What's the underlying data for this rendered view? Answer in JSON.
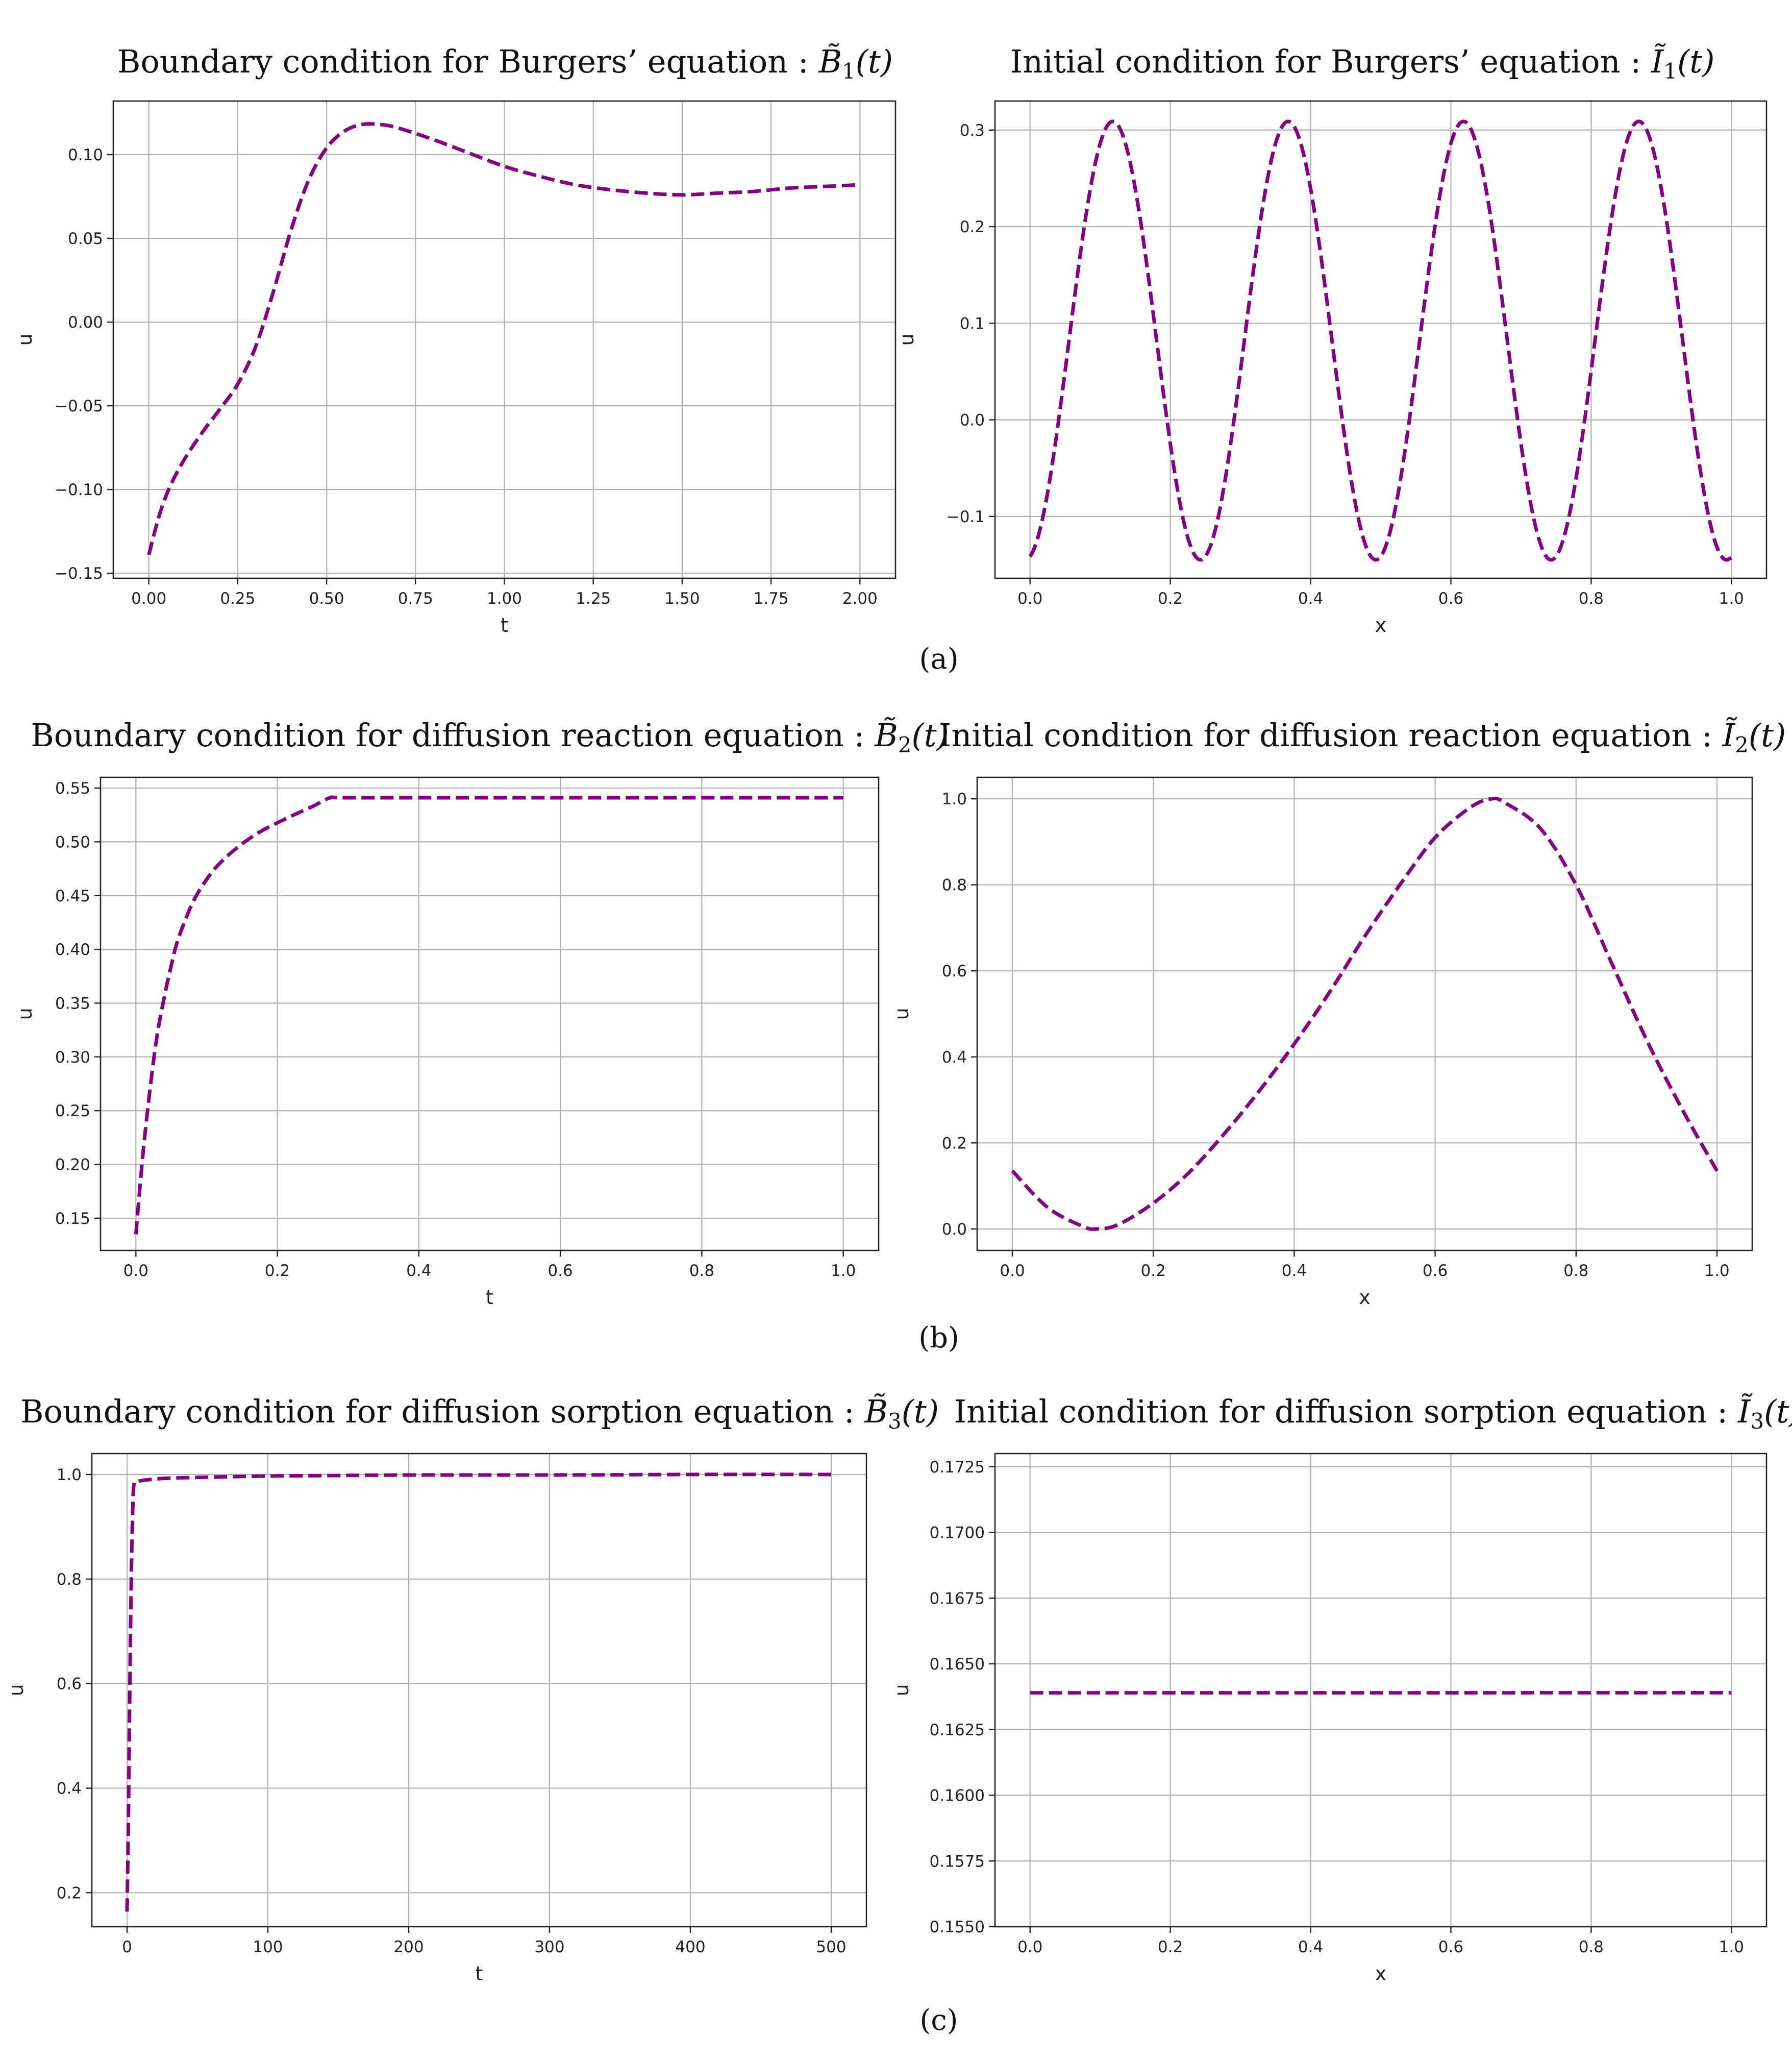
{
  "chart_data": [
    {
      "id": "b1",
      "type": "line",
      "title": "Boundary condition for Burgers’ equation : ",
      "title_sym": "B̃",
      "title_sub": "1",
      "title_arg": "(t)",
      "xlabel": "t",
      "ylabel": "u",
      "xlim": [
        -0.1,
        2.1
      ],
      "ylim": [
        -0.153,
        0.132
      ],
      "xticks": [
        0,
        0.25,
        0.5,
        0.75,
        1.0,
        1.25,
        1.5,
        1.75,
        2.0
      ],
      "xtick_labels": [
        "0.00",
        "0.25",
        "0.50",
        "0.75",
        "1.00",
        "1.25",
        "1.50",
        "1.75",
        "2.00"
      ],
      "yticks": [
        -0.15,
        -0.1,
        -0.05,
        0.0,
        0.05,
        0.1
      ],
      "ytick_labels": [
        "−0.15",
        "−0.10",
        "−0.05",
        "0.00",
        "0.05",
        "0.10"
      ],
      "series": [
        {
          "name": "u",
          "color": "#800080",
          "style": "dashed",
          "x": [
            0,
            0.03,
            0.06,
            0.1,
            0.15,
            0.2,
            0.25,
            0.3,
            0.35,
            0.4,
            0.45,
            0.5,
            0.55,
            0.6,
            0.65,
            0.7,
            0.8,
            0.9,
            1.0,
            1.1,
            1.2,
            1.3,
            1.4,
            1.5,
            1.6,
            1.7,
            1.8,
            1.9,
            2.0
          ],
          "y": [
            -0.139,
            -0.115,
            -0.098,
            -0.082,
            -0.066,
            -0.052,
            -0.037,
            -0.015,
            0.018,
            0.055,
            0.085,
            0.104,
            0.114,
            0.118,
            0.118,
            0.116,
            0.109,
            0.101,
            0.093,
            0.087,
            0.082,
            0.079,
            0.077,
            0.076,
            0.077,
            0.078,
            0.08,
            0.081,
            0.082
          ]
        }
      ]
    },
    {
      "id": "i1",
      "type": "line",
      "title": "Initial condition for Burgers’ equation : ",
      "title_sym": "Ĩ",
      "title_sub": "1",
      "title_arg": "(t)",
      "xlabel": "x",
      "ylabel": "u",
      "xlim": [
        -0.05,
        1.05
      ],
      "ylim": [
        -0.164,
        0.33
      ],
      "xticks": [
        0,
        0.2,
        0.4,
        0.6,
        0.8,
        1.0
      ],
      "xtick_labels": [
        "0.0",
        "0.2",
        "0.4",
        "0.6",
        "0.8",
        "1.0"
      ],
      "yticks": [
        -0.1,
        0.0,
        0.1,
        0.2,
        0.3
      ],
      "ytick_labels": [
        "−0.1",
        "0.0",
        "0.1",
        "0.2",
        "0.3"
      ],
      "series": [
        {
          "name": "u",
          "color": "#800080",
          "style": "dashed",
          "func": "cosine",
          "amp": 0.227,
          "offset": 0.082,
          "period": 0.25,
          "peak_at": 0.118,
          "x_range": [
            0,
            1
          ],
          "y_end": -0.143
        }
      ]
    },
    {
      "id": "b2",
      "type": "line",
      "title": "Boundary condition for diffusion reaction equation : ",
      "title_sym": "B̃",
      "title_sub": "2",
      "title_arg": "(t)",
      "xlabel": "t",
      "ylabel": "u",
      "xlim": [
        -0.05,
        1.05
      ],
      "ylim": [
        0.12,
        0.56
      ],
      "xticks": [
        0,
        0.2,
        0.4,
        0.6,
        0.8,
        1.0
      ],
      "xtick_labels": [
        "0.0",
        "0.2",
        "0.4",
        "0.6",
        "0.8",
        "1.0"
      ],
      "yticks": [
        0.15,
        0.2,
        0.25,
        0.3,
        0.35,
        0.4,
        0.45,
        0.5,
        0.55
      ],
      "ytick_labels": [
        "0.15",
        "0.20",
        "0.25",
        "0.30",
        "0.35",
        "0.40",
        "0.45",
        "0.50",
        "0.55"
      ],
      "series": [
        {
          "name": "u",
          "color": "#800080",
          "style": "dashed",
          "x": [
            0,
            0.01,
            0.02,
            0.03,
            0.04,
            0.05,
            0.06,
            0.08,
            0.1,
            0.12,
            0.15,
            0.18,
            0.22,
            0.25,
            0.275,
            0.3,
            0.5,
            0.7,
            1.0
          ],
          "y": [
            0.135,
            0.21,
            0.27,
            0.32,
            0.355,
            0.385,
            0.41,
            0.443,
            0.465,
            0.481,
            0.498,
            0.511,
            0.524,
            0.533,
            0.541,
            0.541,
            0.541,
            0.541,
            0.541
          ]
        }
      ]
    },
    {
      "id": "i2",
      "type": "line",
      "title": "Initial condition for diffusion reaction equation : ",
      "title_sym": "Ĩ",
      "title_sub": "2",
      "title_arg": "(t)",
      "xlabel": "x",
      "ylabel": "u",
      "xlim": [
        -0.05,
        1.05
      ],
      "ylim": [
        -0.05,
        1.05
      ],
      "xticks": [
        0,
        0.2,
        0.4,
        0.6,
        0.8,
        1.0
      ],
      "xtick_labels": [
        "0.0",
        "0.2",
        "0.4",
        "0.6",
        "0.8",
        "1.0"
      ],
      "yticks": [
        0.0,
        0.2,
        0.4,
        0.6,
        0.8,
        1.0
      ],
      "ytick_labels": [
        "0.0",
        "0.2",
        "0.4",
        "0.6",
        "0.8",
        "1.0"
      ],
      "series": [
        {
          "name": "u",
          "color": "#800080",
          "style": "dashed",
          "x": [
            0,
            0.05,
            0.1,
            0.12,
            0.15,
            0.2,
            0.25,
            0.3,
            0.35,
            0.4,
            0.45,
            0.5,
            0.55,
            0.6,
            0.65,
            0.68,
            0.7,
            0.75,
            0.8,
            0.85,
            0.9,
            0.95,
            1.0
          ],
          "y": [
            0.135,
            0.05,
            0.006,
            0.0,
            0.01,
            0.06,
            0.13,
            0.22,
            0.32,
            0.43,
            0.55,
            0.68,
            0.8,
            0.91,
            0.98,
            1.0,
            0.99,
            0.93,
            0.8,
            0.62,
            0.44,
            0.28,
            0.135
          ]
        }
      ]
    },
    {
      "id": "b3",
      "type": "line",
      "title": "Boundary condition for diffusion sorption equation : ",
      "title_sym": "B̃",
      "title_sub": "3",
      "title_arg": "(t)",
      "xlabel": "t",
      "ylabel": "u",
      "xlim": [
        -25,
        525
      ],
      "ylim": [
        0.135,
        1.04
      ],
      "xticks": [
        0,
        100,
        200,
        300,
        400,
        500
      ],
      "xtick_labels": [
        "0",
        "100",
        "200",
        "300",
        "400",
        "500"
      ],
      "yticks": [
        0.2,
        0.4,
        0.6,
        0.8,
        1.0
      ],
      "ytick_labels": [
        "0.2",
        "0.4",
        "0.6",
        "0.8",
        "1.0"
      ],
      "series": [
        {
          "name": "u",
          "color": "#800080",
          "style": "dashed",
          "x": [
            0,
            1,
            2,
            3,
            4,
            5,
            8,
            15,
            30,
            60,
            100,
            150,
            200,
            300,
            400,
            500
          ],
          "y": [
            0.164,
            0.35,
            0.6,
            0.8,
            0.93,
            0.982,
            0.987,
            0.99,
            0.993,
            0.995,
            0.997,
            0.998,
            0.999,
            0.999,
            1.0,
            1.0
          ]
        }
      ]
    },
    {
      "id": "i3",
      "type": "line",
      "title": "Initial condition for diffusion sorption equation : ",
      "title_sym": "Ĩ",
      "title_sub": "3",
      "title_arg": "(t)",
      "xlabel": "x",
      "ylabel": "u",
      "xlim": [
        -0.05,
        1.05
      ],
      "ylim": [
        0.155,
        0.173
      ],
      "xticks": [
        0,
        0.2,
        0.4,
        0.6,
        0.8,
        1.0
      ],
      "xtick_labels": [
        "0.0",
        "0.2",
        "0.4",
        "0.6",
        "0.8",
        "1.0"
      ],
      "yticks": [
        0.155,
        0.1575,
        0.16,
        0.1625,
        0.165,
        0.1675,
        0.17,
        0.1725
      ],
      "ytick_labels": [
        "0.1550",
        "0.1575",
        "0.1600",
        "0.1625",
        "0.1650",
        "0.1675",
        "0.1700",
        "0.1725"
      ],
      "series": [
        {
          "name": "u",
          "color": "#800080",
          "style": "dashed",
          "x": [
            0,
            1
          ],
          "y": [
            0.1639,
            0.1639
          ]
        }
      ]
    }
  ],
  "panel_labels": [
    "(a)",
    "(b)",
    "(c)"
  ]
}
